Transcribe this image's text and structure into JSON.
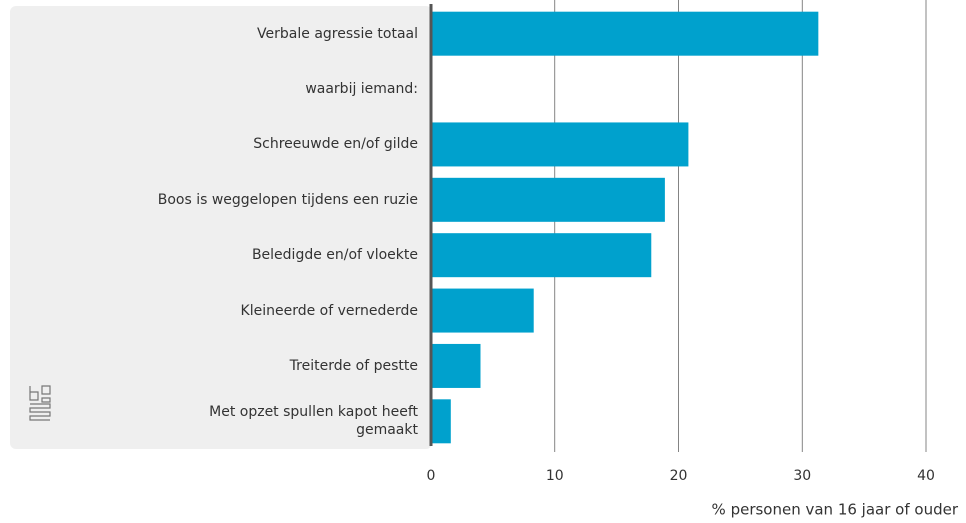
{
  "chart_data": {
    "type": "bar",
    "orientation": "horizontal",
    "categories": [
      "Verbale agressie totaal",
      "waarbij iemand:",
      "Schreeuwde en/of gilde",
      "Boos is weggelopen tijdens een ruzie",
      "Beledigde en/of vloekte",
      "Kleineerde of vernederde",
      "Treiterde of pestte",
      "Met opzet spullen kapot heeft gemaakt"
    ],
    "values": [
      31.3,
      null,
      20.8,
      18.9,
      17.8,
      8.3,
      4.0,
      1.6
    ],
    "color": "#00a1cd",
    "xlim": [
      0,
      40
    ],
    "xticks": [
      0,
      10,
      20,
      30,
      40
    ],
    "grid": true,
    "x_label": "% personen van 16 jaar of ouder"
  }
}
